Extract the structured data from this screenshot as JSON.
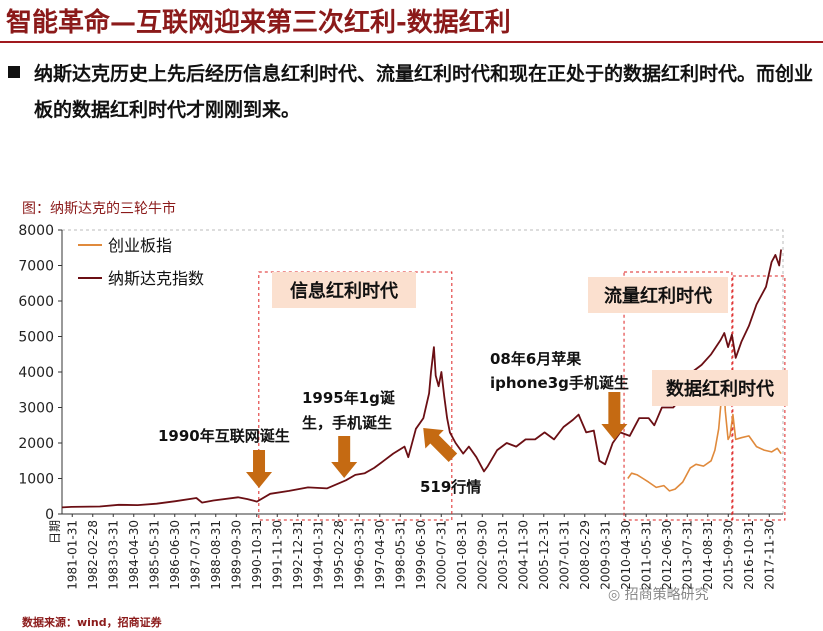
{
  "page": {
    "title": "智能革命—互联网迎来第三次红利-数据红利",
    "bullet_text": "纳斯达克历史上先后经历信息红利时代、流量红利时代和现在正处于的数据红利时代。而创业板的数据红利时代才刚刚到来。",
    "figure_caption": "图：纳斯达克的三轮牛市",
    "source": "数据来源：wind，招商证券",
    "watermark": "招商策略研究"
  },
  "chart_data": {
    "type": "line",
    "title": "",
    "xlabel": "日期",
    "ylabel": "",
    "ylim": [
      0,
      8000
    ],
    "y_ticks": [
      0,
      1000,
      2000,
      3000,
      4000,
      5000,
      6000,
      7000,
      8000
    ],
    "x_range": [
      1980.5,
      2018.6
    ],
    "x_ticks": [
      "1981-01-31",
      "1982-02-28",
      "1983-03-31",
      "1984-04-30",
      "1985-05-31",
      "1986-06-30",
      "1987-07-31",
      "1988-08-31",
      "1989-09-30",
      "1990-10-31",
      "1991-11-30",
      "1992-12-31",
      "1994-01-31",
      "1995-02-28",
      "1996-03-31",
      "1997-04-30",
      "1998-05-31",
      "1999-06-30",
      "2000-07-31",
      "2001-08-31",
      "2002-09-30",
      "2003-10-31",
      "2004-11-30",
      "2005-12-31",
      "2007-01-31",
      "2008-02-29",
      "2009-03-31",
      "2010-04-30",
      "2011-05-31",
      "2012-06-30",
      "2013-07-31",
      "2014-08-31",
      "2015-09-30",
      "2016-10-31",
      "2017-11-30"
    ],
    "legend": [
      "创业板指",
      "纳斯达克指数"
    ],
    "series": [
      {
        "name": "纳斯达克指数",
        "color": "#6b0f14",
        "x": [
          1980.5,
          1981.0,
          1982.5,
          1983.5,
          1984.5,
          1985.5,
          1986.5,
          1987.6,
          1987.9,
          1988.5,
          1989.8,
          1990.3,
          1990.8,
          1991.5,
          1992.5,
          1993.5,
          1994.5,
          1995.5,
          1996.0,
          1996.5,
          1997.0,
          1997.5,
          1998.0,
          1998.6,
          1998.8,
          1999.2,
          1999.6,
          1999.9,
          2000.0,
          2000.15,
          2000.25,
          2000.4,
          2000.55,
          2000.7,
          2000.85,
          2001.0,
          2001.3,
          2001.7,
          2002.0,
          2002.4,
          2002.8,
          2003.0,
          2003.5,
          2004.0,
          2004.5,
          2005.0,
          2005.5,
          2006.0,
          2006.5,
          2007.0,
          2007.5,
          2007.8,
          2008.2,
          2008.6,
          2008.9,
          2009.2,
          2009.6,
          2010.0,
          2010.5,
          2011.0,
          2011.5,
          2011.8,
          2012.2,
          2012.8,
          2013.3,
          2013.8,
          2014.3,
          2014.8,
          2015.3,
          2015.5,
          2015.7,
          2015.9,
          2016.1,
          2016.4,
          2016.8,
          2017.2,
          2017.7,
          2018.0,
          2018.2,
          2018.4,
          2018.5
        ],
        "values": [
          185,
          200,
          210,
          260,
          250,
          290,
          360,
          450,
          320,
          380,
          470,
          420,
          350,
          570,
          650,
          750,
          720,
          950,
          1100,
          1150,
          1300,
          1500,
          1700,
          1900,
          1600,
          2400,
          2700,
          3400,
          4000,
          4700,
          3900,
          3600,
          4000,
          3300,
          2700,
          2300,
          2000,
          1700,
          1900,
          1600,
          1200,
          1350,
          1800,
          2000,
          1900,
          2100,
          2100,
          2300,
          2100,
          2450,
          2650,
          2800,
          2300,
          2350,
          1500,
          1400,
          2000,
          2300,
          2200,
          2700,
          2700,
          2500,
          3000,
          3000,
          3300,
          4000,
          4200,
          4500,
          4900,
          5100,
          4700,
          5050,
          4400,
          4850,
          5300,
          5900,
          6400,
          7100,
          7300,
          7000,
          7450
        ]
      },
      {
        "name": "创业板指",
        "color": "#e08a3c",
        "x": [
          2010.4,
          2010.6,
          2010.9,
          2011.2,
          2011.5,
          2011.9,
          2012.3,
          2012.6,
          2012.9,
          2013.3,
          2013.7,
          2014.0,
          2014.4,
          2014.8,
          2015.0,
          2015.2,
          2015.45,
          2015.55,
          2015.7,
          2015.8,
          2015.95,
          2016.1,
          2016.4,
          2016.8,
          2017.2,
          2017.6,
          2018.0,
          2018.3,
          2018.5
        ],
        "values": [
          1000,
          1150,
          1100,
          1000,
          900,
          750,
          800,
          650,
          700,
          900,
          1300,
          1400,
          1350,
          1500,
          1800,
          2400,
          3900,
          2900,
          2100,
          2200,
          2800,
          2100,
          2150,
          2200,
          1900,
          1800,
          1750,
          1850,
          1700
        ]
      }
    ],
    "shading_regions": [
      {
        "label": "信息红利时代",
        "from": 1990.9,
        "to": 2001.1
      },
      {
        "label": "流量红利时代",
        "from": 2010.2,
        "to": 2015.9
      },
      {
        "label": "数据红利时代",
        "from": 2015.95,
        "to": 2018.7
      }
    ],
    "annotations": [
      {
        "text": "1990年互联网诞生",
        "arrow_x": 1990.7
      },
      {
        "text": "1995年1g诞生，手机诞生",
        "arrow_x": 1995.2
      },
      {
        "text": "519行情",
        "arrow_x": 1999.8
      },
      {
        "text": "08年6月苹果iphone3g手机诞生",
        "arrow_x": 2009.9
      }
    ]
  }
}
